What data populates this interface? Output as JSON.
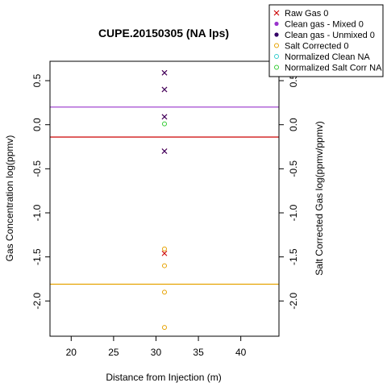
{
  "chart_data": {
    "type": "scatter",
    "title": "CUPE.20150305 (NA lps)",
    "xlabel": "Distance from Injection (m)",
    "ylabel": "Gas Concentration log(ppmv)",
    "ylabel_right": "Salt Corrected Gas log(ppmv/ppmv)",
    "xlim": [
      17.5,
      44.5
    ],
    "ylim": [
      -2.4,
      0.72
    ],
    "x_ticks": [
      20,
      25,
      30,
      35,
      40
    ],
    "y_ticks": [
      -2.0,
      -1.5,
      -1.0,
      -0.5,
      0.0,
      0.5
    ],
    "y_tick_labels": [
      "-2.0",
      "-1.5",
      "-1.0",
      "-0.5",
      "0.0",
      "0.5"
    ],
    "grid": false,
    "legend_position": "top-right",
    "legend": [
      {
        "label": "Raw Gas 0",
        "color": "#cc0000",
        "marker": "cross"
      },
      {
        "label": "Clean gas - Mixed 0",
        "color": "#9933cc",
        "marker": "dot"
      },
      {
        "label": "Clean gas - Unmixed 0",
        "color": "#330066",
        "marker": "dot"
      },
      {
        "label": "Salt Corrected 0",
        "color": "#e6a200",
        "marker": "circle"
      },
      {
        "label": "Normalized Clean NA",
        "color": "#33cccc",
        "marker": "circle"
      },
      {
        "label": "Normalized Salt Corr NA",
        "color": "#33cc33",
        "marker": "circle"
      }
    ],
    "series": [
      {
        "name": "Raw Gas 0",
        "color": "#cc0000",
        "marker": "cross",
        "x": [
          31,
          31,
          31,
          31,
          31
        ],
        "y": [
          0.59,
          0.4,
          0.09,
          -0.3,
          -1.46
        ]
      },
      {
        "name": "Clean gas - Unmixed 0",
        "color": "#330066",
        "marker": "cross",
        "x": [
          31,
          31,
          31,
          31
        ],
        "y": [
          0.59,
          0.4,
          0.09,
          -0.3
        ]
      },
      {
        "name": "Salt Corrected 0",
        "color": "#e6a200",
        "marker": "circle",
        "x": [
          31,
          31,
          31,
          31
        ],
        "y": [
          -1.41,
          -1.6,
          -1.9,
          -2.3
        ]
      },
      {
        "name": "Normalized Salt Corr NA",
        "color": "#33cc33",
        "marker": "circle",
        "x": [
          31
        ],
        "y": [
          0.01
        ]
      }
    ],
    "hlines": [
      {
        "label": "Clean gas - Mixed 0",
        "y": 0.2,
        "color": "#9933cc"
      },
      {
        "label": "Raw Gas 0",
        "y": -0.14,
        "color": "#cc0000"
      },
      {
        "label": "Salt Corrected 0",
        "y": -1.81,
        "color": "#e6a200"
      }
    ]
  }
}
